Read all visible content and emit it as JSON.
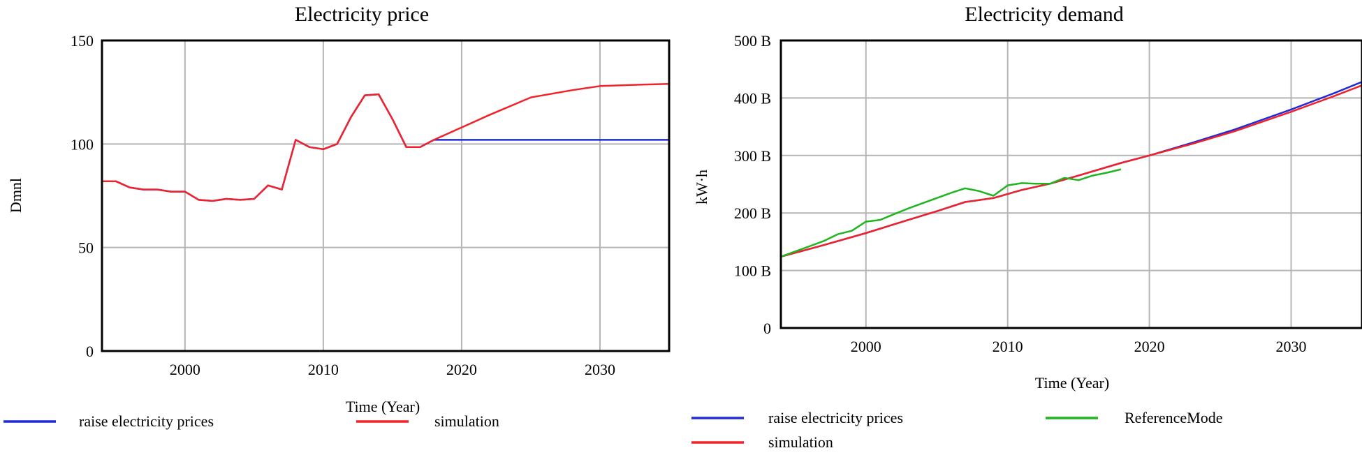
{
  "chart_data": [
    {
      "type": "line",
      "title": "Electricity price",
      "xlabel": "Time (Year)",
      "ylabel": "Dmnl",
      "xlim": [
        1994,
        2035
      ],
      "ylim": [
        0,
        150
      ],
      "xticks": [
        2000,
        2010,
        2020,
        2030
      ],
      "yticks": [
        0,
        50,
        100,
        150
      ],
      "ytick_labels": [
        "0",
        "50",
        "100",
        "150"
      ],
      "grid": true,
      "legend_position": "bottom",
      "series": [
        {
          "name": "raise electricity prices",
          "color": "#1f2bd6",
          "x": [
            1994,
            1995,
            1996,
            1997,
            1998,
            1999,
            2000,
            2001,
            2002,
            2003,
            2004,
            2005,
            2006,
            2007,
            2008,
            2009,
            2010,
            2011,
            2012,
            2013,
            2014,
            2015,
            2016,
            2017,
            2018,
            2025,
            2030,
            2035
          ],
          "y": [
            82,
            82,
            79,
            78,
            78,
            77,
            77,
            73,
            72.5,
            73.5,
            73,
            73.5,
            80,
            78,
            102,
            98.5,
            97.5,
            100,
            113,
            123.5,
            124,
            112,
            98.5,
            98.5,
            102,
            102,
            102,
            102
          ]
        },
        {
          "name": "simulation",
          "color": "#f0232a",
          "x": [
            1994,
            1995,
            1996,
            1997,
            1998,
            1999,
            2000,
            2001,
            2002,
            2003,
            2004,
            2005,
            2006,
            2007,
            2008,
            2009,
            2010,
            2011,
            2012,
            2013,
            2014,
            2015,
            2016,
            2017,
            2018,
            2020,
            2022,
            2025,
            2028,
            2030,
            2033,
            2035
          ],
          "y": [
            82,
            82,
            79,
            78,
            78,
            77,
            77,
            73,
            72.5,
            73.5,
            73,
            73.5,
            80,
            78,
            102,
            98.5,
            97.5,
            100,
            113,
            123.5,
            124,
            112,
            98.5,
            98.5,
            102,
            108,
            114,
            122.5,
            126,
            128,
            128.7,
            129
          ]
        }
      ]
    },
    {
      "type": "line",
      "title": "Electricity demand",
      "xlabel": "Time (Year)",
      "ylabel": "kW·h",
      "xlim": [
        1994,
        2035
      ],
      "ylim": [
        0,
        500
      ],
      "xticks": [
        2000,
        2010,
        2020,
        2030
      ],
      "yticks": [
        0,
        100,
        200,
        300,
        400,
        500
      ],
      "ytick_labels": [
        "0",
        "100 B",
        "200 B",
        "300 B",
        "400 B",
        "500 B"
      ],
      "grid": true,
      "legend_position": "bottom",
      "series": [
        {
          "name": "raise electricity prices",
          "color": "#1f2bd6",
          "x": [
            1994,
            1997,
            2000,
            2003,
            2005,
            2007,
            2009,
            2011,
            2013,
            2015,
            2018,
            2020,
            2023,
            2026,
            2030,
            2033,
            2035
          ],
          "y": [
            124,
            144,
            165,
            188,
            203,
            219,
            226,
            240,
            251,
            265,
            287,
            300,
            322,
            345,
            380,
            408,
            428
          ]
        },
        {
          "name": "simulation",
          "color": "#f0232a",
          "x": [
            1994,
            1997,
            2000,
            2003,
            2005,
            2007,
            2009,
            2011,
            2013,
            2015,
            2018,
            2020,
            2023,
            2026,
            2030,
            2033,
            2035
          ],
          "y": [
            124,
            144,
            165,
            188,
            203,
            219,
            226,
            240,
            251,
            265,
            287,
            300,
            320,
            342,
            376,
            403,
            422
          ]
        },
        {
          "name": "ReferenceMode",
          "color": "#1fb51f",
          "x": [
            1994,
            1996,
            1997,
            1998,
            1999,
            2000,
            2001,
            2002,
            2003,
            2004,
            2005,
            2006,
            2007,
            2008,
            2009,
            2010,
            2011,
            2012,
            2013,
            2014,
            2015,
            2016,
            2017,
            2018
          ],
          "y": [
            124,
            142,
            151,
            163,
            169,
            185,
            188,
            198,
            208,
            217,
            226,
            235,
            243,
            238,
            230,
            248,
            252,
            251,
            251,
            261,
            257,
            265,
            270,
            276
          ]
        }
      ]
    }
  ]
}
